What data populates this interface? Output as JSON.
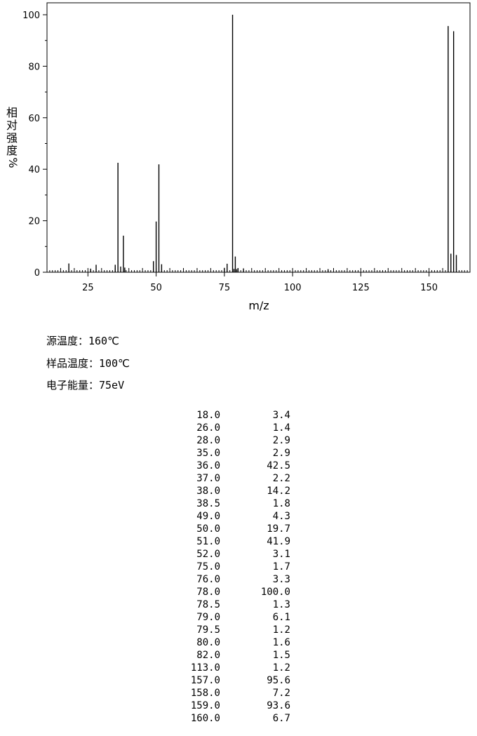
{
  "chart_data": {
    "type": "bar",
    "xlabel": "m/z",
    "ylabel": "相对强度%",
    "ylabel_chars": [
      "相",
      "对",
      "强",
      "度",
      "%"
    ],
    "xlim": [
      10,
      165
    ],
    "ylim": [
      0,
      100
    ],
    "x_ticks": [
      25,
      50,
      75,
      100,
      125,
      150
    ],
    "y_ticks": [
      0,
      20,
      40,
      60,
      80,
      100
    ],
    "grid": false,
    "x": [
      18.0,
      26.0,
      28.0,
      35.0,
      36.0,
      37.0,
      38.0,
      38.5,
      49.0,
      50.0,
      51.0,
      52.0,
      75.0,
      76.0,
      78.0,
      78.5,
      79.0,
      79.5,
      80.0,
      82.0,
      113.0,
      157.0,
      158.0,
      159.0,
      160.0
    ],
    "values": [
      3.4,
      1.4,
      2.9,
      2.9,
      42.5,
      2.2,
      14.2,
      1.8,
      4.3,
      19.7,
      41.9,
      3.1,
      1.7,
      3.3,
      100.0,
      1.3,
      6.1,
      1.2,
      1.6,
      1.5,
      1.2,
      95.6,
      7.2,
      93.6,
      6.7
    ]
  },
  "conditions": {
    "source_temp": "源温度：160℃",
    "sample_temp": "样品温度：100℃",
    "electron_energy": "电子能量：75eV"
  },
  "peaks": [
    {
      "mz": "18.0",
      "intensity": "3.4"
    },
    {
      "mz": "26.0",
      "intensity": "1.4"
    },
    {
      "mz": "28.0",
      "intensity": "2.9"
    },
    {
      "mz": "35.0",
      "intensity": "2.9"
    },
    {
      "mz": "36.0",
      "intensity": "42.5"
    },
    {
      "mz": "37.0",
      "intensity": "2.2"
    },
    {
      "mz": "38.0",
      "intensity": "14.2"
    },
    {
      "mz": "38.5",
      "intensity": "1.8"
    },
    {
      "mz": "49.0",
      "intensity": "4.3"
    },
    {
      "mz": "50.0",
      "intensity": "19.7"
    },
    {
      "mz": "51.0",
      "intensity": "41.9"
    },
    {
      "mz": "52.0",
      "intensity": "3.1"
    },
    {
      "mz": "75.0",
      "intensity": "1.7"
    },
    {
      "mz": "76.0",
      "intensity": "3.3"
    },
    {
      "mz": "78.0",
      "intensity": "100.0"
    },
    {
      "mz": "78.5",
      "intensity": "1.3"
    },
    {
      "mz": "79.0",
      "intensity": "6.1"
    },
    {
      "mz": "79.5",
      "intensity": "1.2"
    },
    {
      "mz": "80.0",
      "intensity": "1.6"
    },
    {
      "mz": "82.0",
      "intensity": "1.5"
    },
    {
      "mz": "113.0",
      "intensity": "1.2"
    },
    {
      "mz": "157.0",
      "intensity": "95.6"
    },
    {
      "mz": "158.0",
      "intensity": "7.2"
    },
    {
      "mz": "159.0",
      "intensity": "93.6"
    },
    {
      "mz": "160.0",
      "intensity": "6.7"
    }
  ]
}
